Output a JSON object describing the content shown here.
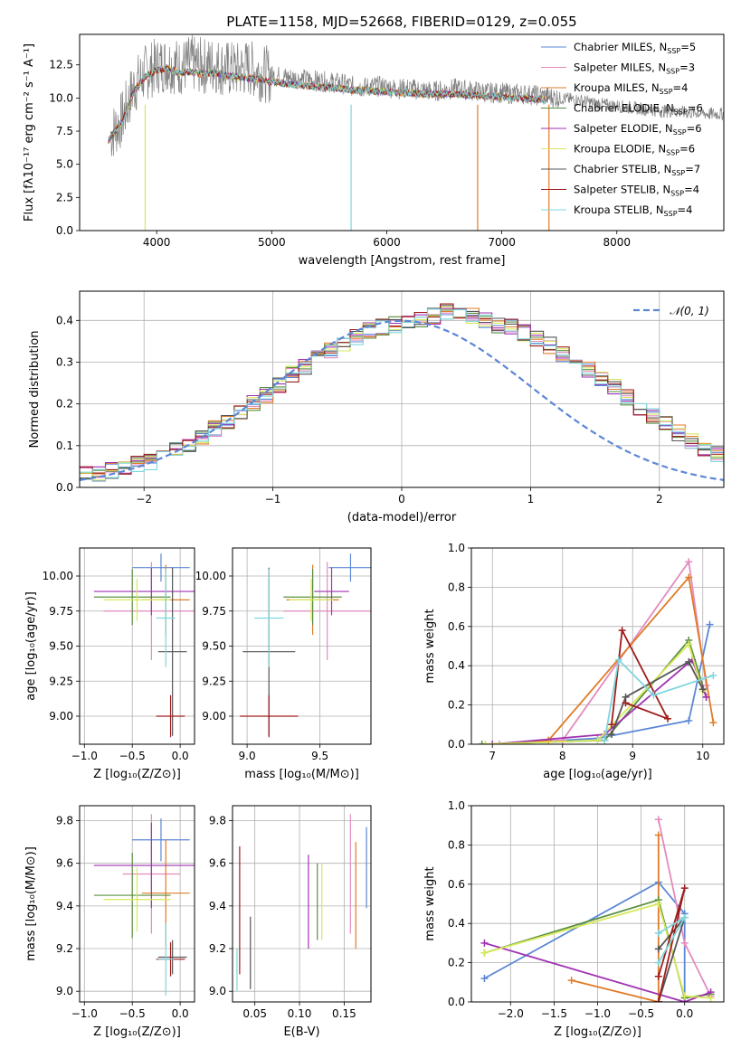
{
  "figure": {
    "title": "PLATE=1158, MJD=52668, FIBERID=0129, z=0.055"
  },
  "chart_data": [
    {
      "id": "spectrum",
      "type": "line",
      "xlabel": "wavelength [Angstrom, rest frame]",
      "ylabel": "Flux [fλ10⁻¹⁷ erg cm⁻² s⁻¹ A⁻¹]",
      "xlim": [
        3330,
        8930
      ],
      "ylim": [
        0,
        14.8
      ],
      "xticks": [
        4000,
        5000,
        6000,
        7000,
        8000
      ],
      "yticks": [
        0.0,
        2.5,
        5.0,
        7.5,
        10.0,
        12.5
      ],
      "grid": false,
      "legend_position": "top-right",
      "data": {
        "x": [
          3600,
          3700,
          3800,
          3900,
          4000,
          4100,
          4200,
          4300,
          4400,
          4500,
          4600,
          4700,
          4800,
          4900,
          5000,
          5100,
          5200,
          5300,
          5400,
          5500,
          5600,
          5700,
          5800,
          5900,
          6000,
          6100,
          6200,
          6300,
          6400,
          6500,
          6600,
          6700,
          6800,
          6900,
          7000,
          7100,
          7200,
          7300,
          7400,
          7500,
          7600,
          7700,
          7800,
          7900,
          8000,
          8100,
          8200,
          8300,
          8400,
          8500,
          8600,
          8700,
          8800,
          8900
        ],
        "y": [
          7.2,
          8.4,
          10.8,
          11.9,
          12.4,
          12.6,
          12.3,
          12.6,
          12.4,
          12.5,
          12.2,
          12.1,
          12.3,
          11.9,
          11.7,
          11.6,
          11.5,
          11.4,
          11.3,
          11.2,
          11.1,
          10.9,
          10.8,
          10.9,
          10.8,
          10.7,
          10.7,
          10.6,
          10.5,
          10.6,
          10.7,
          10.6,
          10.5,
          10.4,
          10.4,
          10.3,
          10.3,
          10.2,
          10.1,
          10.0,
          9.9,
          9.8,
          9.6,
          9.5,
          9.4,
          9.3,
          9.2,
          9.1,
          9.0,
          9.0,
          8.9,
          8.9,
          8.8,
          8.8
        ]
      },
      "models": {
        "x": [
          3580,
          3700,
          3800,
          3900,
          4000,
          4100,
          4200,
          4300,
          4400,
          4500,
          4600,
          4700,
          4800,
          4900,
          5000,
          5100,
          5200,
          5300,
          5400,
          5500,
          5600,
          5700,
          5800,
          5900,
          6000,
          6100,
          6200,
          6300,
          6400,
          6500,
          6600,
          6700,
          6800,
          6900,
          7000,
          7100,
          7200,
          7300,
          7400
        ],
        "y": [
          6.8,
          8.2,
          10.5,
          11.6,
          12.1,
          12.2,
          11.9,
          12.0,
          11.8,
          11.9,
          11.7,
          11.6,
          11.5,
          11.4,
          11.2,
          11.1,
          11.0,
          10.9,
          10.8,
          10.8,
          10.7,
          10.6,
          10.6,
          10.5,
          10.5,
          10.4,
          10.4,
          10.3,
          10.3,
          10.3,
          10.3,
          10.2,
          10.2,
          10.1,
          10.1,
          10.0,
          10.0,
          9.9,
          9.9
        ]
      },
      "series": [
        {
          "name": "Chabrier MILES, N",
          "sub": "SSP",
          "suffix": "=5",
          "color": "#5b87d6"
        },
        {
          "name": "Salpeter MILES, N",
          "sub": "SSP",
          "suffix": "=3",
          "color": "#e38bbf"
        },
        {
          "name": "Kroupa MILES, N",
          "sub": "SSP",
          "suffix": "=4",
          "color": "#e07b27"
        },
        {
          "name": "Chabrier ELODIE, N",
          "sub": "SSP",
          "suffix": "=6",
          "color": "#5a8f3e"
        },
        {
          "name": "Salpeter ELODIE, N",
          "sub": "SSP",
          "suffix": "=6",
          "color": "#a032b2"
        },
        {
          "name": "Kroupa ELODIE, N",
          "sub": "SSP",
          "suffix": "=6",
          "color": "#d7e85a"
        },
        {
          "name": "Chabrier STELIB, N",
          "sub": "SSP",
          "suffix": "=7",
          "color": "#555555"
        },
        {
          "name": "Salpeter STELIB, N",
          "sub": "SSP",
          "suffix": "=4",
          "color": "#a01c1c"
        },
        {
          "name": "Kroupa STELIB, N",
          "sub": "SSP",
          "suffix": "=4",
          "color": "#7fd6dd"
        }
      ]
    },
    {
      "id": "residuals",
      "type": "line",
      "xlabel": "(data-model)/error",
      "ylabel": "Normed distribution",
      "xlim": [
        -2.5,
        2.5
      ],
      "ylim": [
        0,
        0.47
      ],
      "xticks": [
        -2,
        -1,
        0,
        1,
        2
      ],
      "yticks": [
        0.0,
        0.1,
        0.2,
        0.3,
        0.4
      ],
      "grid": true,
      "legend_position": "top-right",
      "gaussian_label": "𝒩(0, 1)",
      "bin_width": 0.1,
      "histogram_template": [
        0.03,
        0.03,
        0.04,
        0.05,
        0.055,
        0.06,
        0.075,
        0.09,
        0.105,
        0.12,
        0.14,
        0.16,
        0.18,
        0.2,
        0.22,
        0.245,
        0.27,
        0.29,
        0.31,
        0.33,
        0.345,
        0.36,
        0.375,
        0.385,
        0.39,
        0.395,
        0.4,
        0.41,
        0.42,
        0.415,
        0.41,
        0.4,
        0.39,
        0.385,
        0.37,
        0.355,
        0.34,
        0.32,
        0.3,
        0.28,
        0.26,
        0.24,
        0.215,
        0.19,
        0.17,
        0.15,
        0.13,
        0.11,
        0.095,
        0.08,
        0.065
      ]
    },
    {
      "id": "age-vs-Z",
      "type": "scatter",
      "xlabel": "Z [log₁₀(Z/Z⊙)]",
      "ylabel": "age  [log₁₀(age/yr)]",
      "xlim": [
        -1.05,
        0.15
      ],
      "ylim": [
        8.8,
        10.2
      ],
      "xticks": [
        -1.0,
        -0.5,
        0.0
      ],
      "yticks": [
        9.0,
        9.25,
        9.5,
        9.75,
        10.0
      ],
      "points": [
        {
          "x": -0.2,
          "y": 10.06,
          "xerr": 0.3,
          "yerr": 0.1,
          "series": 0
        },
        {
          "x": -0.3,
          "y": 9.75,
          "xerr": 0.5,
          "yerr": 0.35,
          "series": 1
        },
        {
          "x": -0.15,
          "y": 9.83,
          "xerr": 0.25,
          "yerr": 0.25,
          "series": 2
        },
        {
          "x": -0.5,
          "y": 9.85,
          "xerr": 0.4,
          "yerr": 0.2,
          "series": 3
        },
        {
          "x": -0.3,
          "y": 9.89,
          "xerr": 0.6,
          "yerr": 0.17,
          "series": 4
        },
        {
          "x": -0.45,
          "y": 9.83,
          "xerr": 0.35,
          "yerr": 0.15,
          "series": 5
        },
        {
          "x": -0.08,
          "y": 9.46,
          "xerr": 0.15,
          "yerr": 0.6,
          "series": 6
        },
        {
          "x": -0.1,
          "y": 9.0,
          "xerr": 0.15,
          "yerr": 0.15,
          "series": 7
        },
        {
          "x": -0.15,
          "y": 9.7,
          "xerr": 0.1,
          "yerr": 0.35,
          "series": 8
        }
      ]
    },
    {
      "id": "age-vs-mass",
      "type": "scatter",
      "xlabel": "mass [log₁₀(M/M⊙)]",
      "ylabel": "",
      "xlim": [
        8.9,
        9.85
      ],
      "ylim": [
        8.8,
        10.2
      ],
      "xticks": [
        9.0,
        9.5
      ],
      "yticks": [
        9.0,
        9.25,
        9.5,
        9.75,
        10.0
      ],
      "points": [
        {
          "x": 9.71,
          "y": 10.06,
          "xerr": 0.15,
          "yerr": 0.1,
          "series": 0
        },
        {
          "x": 9.55,
          "y": 9.75,
          "xerr": 0.3,
          "yerr": 0.35,
          "series": 1
        },
        {
          "x": 9.45,
          "y": 9.83,
          "xerr": 0.18,
          "yerr": 0.25,
          "series": 2
        },
        {
          "x": 9.45,
          "y": 9.85,
          "xerr": 0.2,
          "yerr": 0.2,
          "series": 3
        },
        {
          "x": 9.58,
          "y": 9.89,
          "xerr": 0.12,
          "yerr": 0.17,
          "series": 4
        },
        {
          "x": 9.44,
          "y": 9.83,
          "xerr": 0.15,
          "yerr": 0.15,
          "series": 5
        },
        {
          "x": 9.15,
          "y": 9.46,
          "xerr": 0.18,
          "yerr": 0.6,
          "series": 6
        },
        {
          "x": 9.15,
          "y": 9.0,
          "xerr": 0.2,
          "yerr": 0.15,
          "series": 7
        },
        {
          "x": 9.15,
          "y": 9.7,
          "xerr": 0.1,
          "yerr": 0.35,
          "series": 8
        }
      ]
    },
    {
      "id": "weight-vs-age",
      "type": "line",
      "xlabel": "age  [log₁₀(age/yr)]",
      "ylabel": "mass weight",
      "xlim": [
        6.7,
        10.3
      ],
      "ylim": [
        0,
        1
      ],
      "xticks": [
        7,
        8,
        9,
        10
      ],
      "yticks": [
        0.0,
        0.2,
        0.4,
        0.6,
        0.8,
        1.0
      ],
      "series": [
        {
          "x": [
            7.0,
            8.5,
            9.8,
            10.1
          ],
          "y": [
            0.0,
            0.03,
            0.12,
            0.61
          ]
        },
        {
          "x": [
            7.1,
            8.0,
            9.8,
            10.05
          ],
          "y": [
            0.0,
            0.02,
            0.93,
            0.3
          ]
        },
        {
          "x": [
            7.0,
            7.8,
            9.8,
            10.15
          ],
          "y": [
            0.0,
            0.02,
            0.85,
            0.11
          ]
        },
        {
          "x": [
            6.85,
            8.6,
            9.8,
            10.05
          ],
          "y": [
            0.0,
            0.02,
            0.53,
            0.24
          ]
        },
        {
          "x": [
            7.0,
            8.6,
            9.85,
            10.05
          ],
          "y": [
            0.0,
            0.05,
            0.43,
            0.24
          ]
        },
        {
          "x": [
            6.9,
            8.5,
            9.8,
            10.0
          ],
          "y": [
            0.0,
            0.02,
            0.51,
            0.27
          ]
        },
        {
          "x": [
            8.7,
            8.9,
            9.8,
            10.0
          ],
          "y": [
            0.05,
            0.24,
            0.42,
            0.28
          ]
        },
        {
          "x": [
            8.7,
            8.85,
            9.5,
            8.9
          ],
          "y": [
            0.1,
            0.58,
            0.13,
            0.21
          ]
        },
        {
          "x": [
            8.6,
            8.8,
            9.3,
            10.15
          ],
          "y": [
            0.02,
            0.43,
            0.25,
            0.35
          ]
        }
      ]
    },
    {
      "id": "mass-vs-Z",
      "type": "scatter",
      "xlabel": "Z [log₁₀(Z/Z⊙)]",
      "ylabel": "mass [log₁₀(M/M⊙)]",
      "xlim": [
        -1.05,
        0.15
      ],
      "ylim": [
        8.95,
        9.87
      ],
      "xticks": [
        -1.0,
        -0.5,
        0.0
      ],
      "yticks": [
        9.0,
        9.2,
        9.4,
        9.6,
        9.8
      ],
      "points": [
        {
          "x": -0.2,
          "y": 9.71,
          "xerr": 0.3,
          "yerr": 0.1,
          "series": 0
        },
        {
          "x": -0.3,
          "y": 9.55,
          "xerr": 0.3,
          "yerr": 0.28,
          "series": 1
        },
        {
          "x": -0.15,
          "y": 9.46,
          "xerr": 0.25,
          "yerr": 0.25,
          "series": 2
        },
        {
          "x": -0.5,
          "y": 9.45,
          "xerr": 0.4,
          "yerr": 0.2,
          "series": 3
        },
        {
          "x": -0.3,
          "y": 9.59,
          "xerr": 0.6,
          "yerr": 0.2,
          "series": 4
        },
        {
          "x": -0.45,
          "y": 9.43,
          "xerr": 0.35,
          "yerr": 0.15,
          "series": 5
        },
        {
          "x": -0.08,
          "y": 9.16,
          "xerr": 0.15,
          "yerr": 0.08,
          "series": 6
        },
        {
          "x": -0.1,
          "y": 9.15,
          "xerr": 0.15,
          "yerr": 0.08,
          "series": 7
        },
        {
          "x": -0.15,
          "y": 9.15,
          "xerr": 0.08,
          "yerr": 0.17,
          "series": 8
        }
      ]
    },
    {
      "id": "mass-vs-EBV",
      "type": "scatter",
      "xlabel": "E(B-V)",
      "ylabel": "",
      "xlim": [
        0.025,
        0.18
      ],
      "ylim": [
        8.95,
        9.87
      ],
      "xticks": [
        0.05,
        0.1,
        0.15
      ],
      "yticks": [
        9.0,
        9.2,
        9.4,
        9.6,
        9.8
      ],
      "points": [
        {
          "x": 0.175,
          "y": 9.58,
          "yerr": 0.19,
          "series": 0
        },
        {
          "x": 0.157,
          "y": 9.55,
          "yerr": 0.28,
          "series": 1
        },
        {
          "x": 0.163,
          "y": 9.45,
          "yerr": 0.25,
          "series": 2
        },
        {
          "x": 0.12,
          "y": 9.42,
          "yerr": 0.18,
          "series": 3
        },
        {
          "x": 0.11,
          "y": 9.42,
          "yerr": 0.22,
          "series": 4
        },
        {
          "x": 0.125,
          "y": 9.42,
          "yerr": 0.18,
          "series": 5
        },
        {
          "x": 0.045,
          "y": 9.18,
          "yerr": 0.17,
          "series": 6
        },
        {
          "x": 0.033,
          "y": 9.38,
          "yerr": 0.3,
          "series": 7
        },
        {
          "x": 0.03,
          "y": 9.1,
          "yerr": 0.1,
          "series": 8
        }
      ]
    },
    {
      "id": "weight-vs-Z",
      "type": "line",
      "xlabel": "Z [log₁₀(Z/Z⊙)]",
      "ylabel": "mass weight",
      "xlim": [
        -2.45,
        0.45
      ],
      "ylim": [
        0,
        1
      ],
      "xticks": [
        -2.0,
        -1.5,
        -1.0,
        -0.5,
        0.0
      ],
      "yticks": [
        0.0,
        0.2,
        0.4,
        0.6,
        0.8,
        1.0
      ],
      "series": [
        {
          "x": [
            -2.3,
            -0.3,
            0.0,
            0.0
          ],
          "y": [
            0.12,
            0.61,
            0.45,
            0.0
          ]
        },
        {
          "x": [
            -0.3,
            0.0,
            0.3
          ],
          "y": [
            0.93,
            0.3,
            0.03
          ]
        },
        {
          "x": [
            -1.3,
            -0.3,
            -0.3
          ],
          "y": [
            0.11,
            0.0,
            0.85
          ]
        },
        {
          "x": [
            -2.3,
            -0.3,
            0.0,
            0.3
          ],
          "y": [
            0.25,
            0.52,
            0.02,
            0.04
          ]
        },
        {
          "x": [
            -2.3,
            0.0,
            0.3
          ],
          "y": [
            0.3,
            0.0,
            0.05
          ]
        },
        {
          "x": [
            -2.3,
            -0.3,
            0.0,
            0.3
          ],
          "y": [
            0.25,
            0.5,
            0.03,
            0.02
          ]
        },
        {
          "x": [
            -0.3,
            0.0,
            -0.3
          ],
          "y": [
            0.0,
            0.43,
            0.27
          ]
        },
        {
          "x": [
            -0.3,
            0.0,
            -0.3
          ],
          "y": [
            0.13,
            0.58,
            0.0
          ]
        },
        {
          "x": [
            -0.3,
            0.0,
            -0.3
          ],
          "y": [
            0.35,
            0.43,
            0.2
          ]
        }
      ]
    }
  ]
}
